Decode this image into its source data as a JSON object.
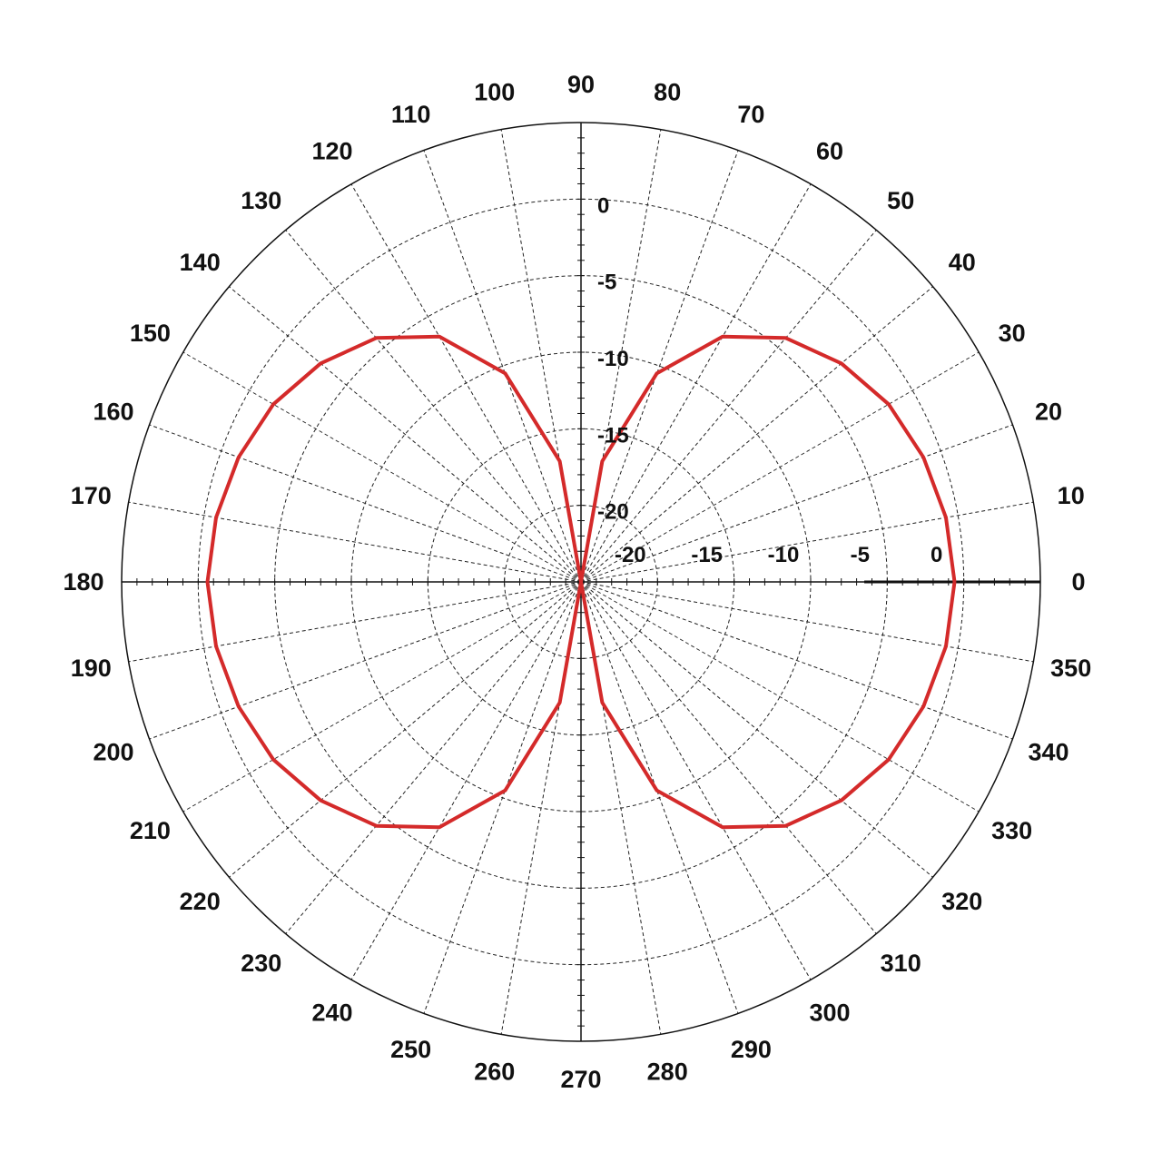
{
  "chart_data": {
    "type": "polar-line",
    "title": "",
    "angle_unit": "degrees",
    "angle_ticks": [
      0,
      10,
      20,
      30,
      40,
      50,
      60,
      70,
      80,
      90,
      100,
      110,
      120,
      130,
      140,
      150,
      160,
      170,
      180,
      190,
      200,
      210,
      220,
      230,
      240,
      250,
      260,
      270,
      280,
      290,
      300,
      310,
      320,
      330,
      340,
      350
    ],
    "angle_tick_labels": [
      "0",
      "10",
      "20",
      "30",
      "40",
      "50",
      "60",
      "70",
      "80",
      "90",
      "100",
      "110",
      "120",
      "130",
      "140",
      "150",
      "160",
      "170",
      "180",
      "190",
      "200",
      "210",
      "220",
      "230",
      "240",
      "250",
      "260",
      "270",
      "280",
      "290",
      "300",
      "310",
      "320",
      "330",
      "340",
      "350"
    ],
    "radial_unit": "dB",
    "radial_range": [
      -25,
      5
    ],
    "radial_ticks": [
      -20,
      -15,
      -10,
      -5,
      0
    ],
    "radial_tick_labels_vertical": [
      "-20",
      "-15",
      "-10",
      "-5",
      "0"
    ],
    "radial_tick_labels_horizontal": [
      "-20",
      "-15",
      "-10",
      "-5",
      "0"
    ],
    "grid": true,
    "line_color": "#d42a2a",
    "series": [
      {
        "name": "",
        "theta": [
          0,
          10,
          20,
          30,
          40,
          50,
          60,
          70,
          80,
          90,
          100,
          110,
          120,
          130,
          140,
          150,
          160,
          170,
          180,
          190,
          200,
          210,
          220,
          230,
          240,
          250,
          260,
          270,
          280,
          290,
          300,
          310,
          320,
          330,
          340,
          350,
          360
        ],
        "r": [
          -0.6,
          -0.8,
          -1.2,
          -1.8,
          -2.8,
          -4.2,
          -6.5,
          -10.5,
          -17,
          -25,
          -17,
          -10.5,
          -6.5,
          -4.2,
          -2.8,
          -1.8,
          -1.2,
          -0.8,
          -0.6,
          -0.8,
          -1.2,
          -1.8,
          -2.8,
          -4.2,
          -6.5,
          -10.5,
          -17,
          -25,
          -17,
          -10.5,
          -6.5,
          -4.2,
          -2.8,
          -1.8,
          -1.2,
          -0.8,
          -0.6
        ]
      }
    ]
  }
}
